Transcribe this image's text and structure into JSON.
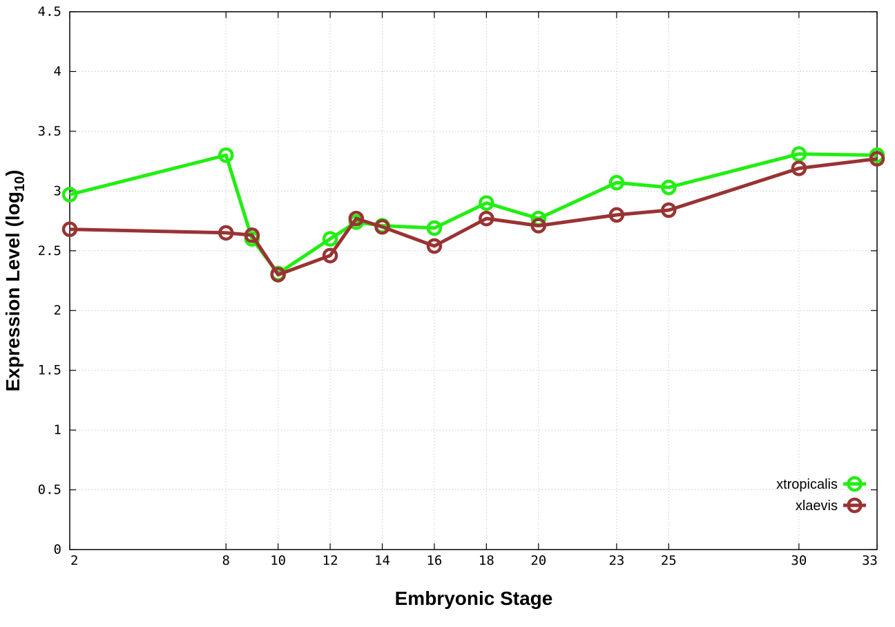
{
  "chart_data": {
    "type": "line",
    "xlabel": "Embryonic Stage",
    "ylabel_main": "Expression Level (log",
    "ylabel_sub": "10",
    "ylabel_close": ")",
    "xlim": [
      2,
      33
    ],
    "ylim": [
      0,
      4.5
    ],
    "x_ticks": [
      2,
      8,
      10,
      12,
      14,
      16,
      18,
      20,
      23,
      25,
      30,
      33
    ],
    "y_ticks": [
      "0",
      "0.5",
      "1",
      "1.5",
      "2",
      "2.5",
      "3",
      "3.5",
      "4",
      "4.5"
    ],
    "grid": true,
    "legend_position": "bottom-right",
    "series": [
      {
        "name": "xtropicalis",
        "color": "#22ee11",
        "points": [
          [
            2,
            2.97
          ],
          [
            8,
            3.3
          ],
          [
            9,
            2.6
          ],
          [
            10,
            2.31
          ],
          [
            12,
            2.6
          ],
          [
            13,
            2.74
          ],
          [
            14,
            2.71
          ],
          [
            16,
            2.69
          ],
          [
            18,
            2.9
          ],
          [
            20,
            2.77
          ],
          [
            23,
            3.07
          ],
          [
            25,
            3.03
          ],
          [
            30,
            3.31
          ],
          [
            33,
            3.3
          ]
        ]
      },
      {
        "name": "xlaevis",
        "color": "#993333",
        "points": [
          [
            2,
            2.68
          ],
          [
            8,
            2.65
          ],
          [
            9,
            2.63
          ],
          [
            10,
            2.3
          ],
          [
            12,
            2.46
          ],
          [
            13,
            2.77
          ],
          [
            14,
            2.7
          ],
          [
            16,
            2.54
          ],
          [
            18,
            2.77
          ],
          [
            20,
            2.71
          ],
          [
            23,
            2.8
          ],
          [
            25,
            2.84
          ],
          [
            30,
            3.19
          ],
          [
            33,
            3.27
          ]
        ]
      }
    ]
  }
}
